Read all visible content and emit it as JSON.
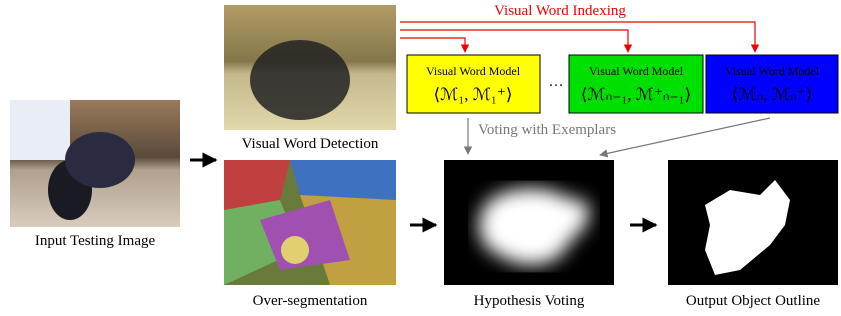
{
  "indexing_label": "Visual Word Indexing",
  "models": [
    {
      "label": "Visual Word Model",
      "formula": "⟨ℳ₁, ℳ₁⁺⟩"
    },
    {
      "label": "Visual Word Model",
      "formula": "⟨ℳₙ₋₁, ℳ⁺ₙ₋₁⟩"
    },
    {
      "label": "Visual Word Model",
      "formula": "⟨ℳₙ, ℳₙ⁺⟩"
    }
  ],
  "ellipsis": "…",
  "voting_label": "Voting with Exemplars",
  "captions": {
    "input": "Input Testing Image",
    "detection": "Visual Word Detection",
    "segmentation": "Over-segmentation",
    "voting": "Hypothesis Voting",
    "output": "Output Object Outline"
  }
}
